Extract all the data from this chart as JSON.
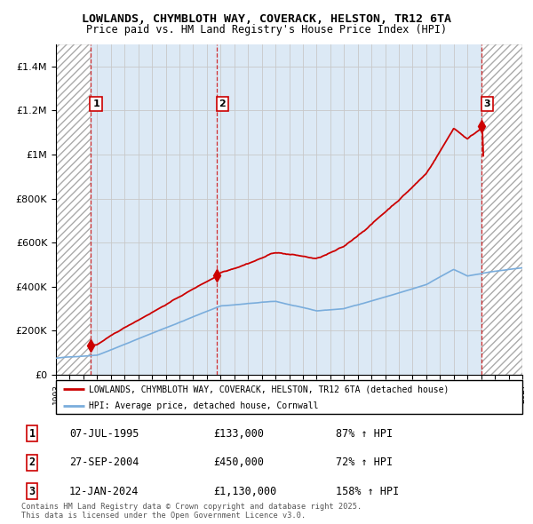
{
  "title_line1": "LOWLANDS, CHYMBLOTH WAY, COVERACK, HELSTON, TR12 6TA",
  "title_line2": "Price paid vs. HM Land Registry's House Price Index (HPI)",
  "ylim": [
    0,
    1500000
  ],
  "yticks": [
    0,
    200000,
    400000,
    600000,
    800000,
    1000000,
    1200000,
    1400000
  ],
  "ytick_labels": [
    "£0",
    "£200K",
    "£400K",
    "£600K",
    "£800K",
    "£1M",
    "£1.2M",
    "£1.4M"
  ],
  "xlim_start": 1993.0,
  "xlim_end": 2027.0,
  "sale_years": [
    1995.52,
    2004.74,
    2024.04
  ],
  "sale_prices": [
    133000,
    450000,
    1130000
  ],
  "sale_labels": [
    "1",
    "2",
    "3"
  ],
  "hpi_color": "#7aaddc",
  "price_color": "#cc0000",
  "bg_color": "#dce9f5",
  "hatch_color": "#b0b8c0",
  "legend_price_label": "LOWLANDS, CHYMBLOTH WAY, COVERACK, HELSTON, TR12 6TA (detached house)",
  "legend_hpi_label": "HPI: Average price, detached house, Cornwall",
  "table_rows": [
    [
      "1",
      "07-JUL-1995",
      "£133,000",
      "87% ↑ HPI"
    ],
    [
      "2",
      "27-SEP-2004",
      "£450,000",
      "72% ↑ HPI"
    ],
    [
      "3",
      "12-JAN-2024",
      "£1,130,000",
      "158% ↑ HPI"
    ]
  ],
  "footnote": "Contains HM Land Registry data © Crown copyright and database right 2025.\nThis data is licensed under the Open Government Licence v3.0."
}
